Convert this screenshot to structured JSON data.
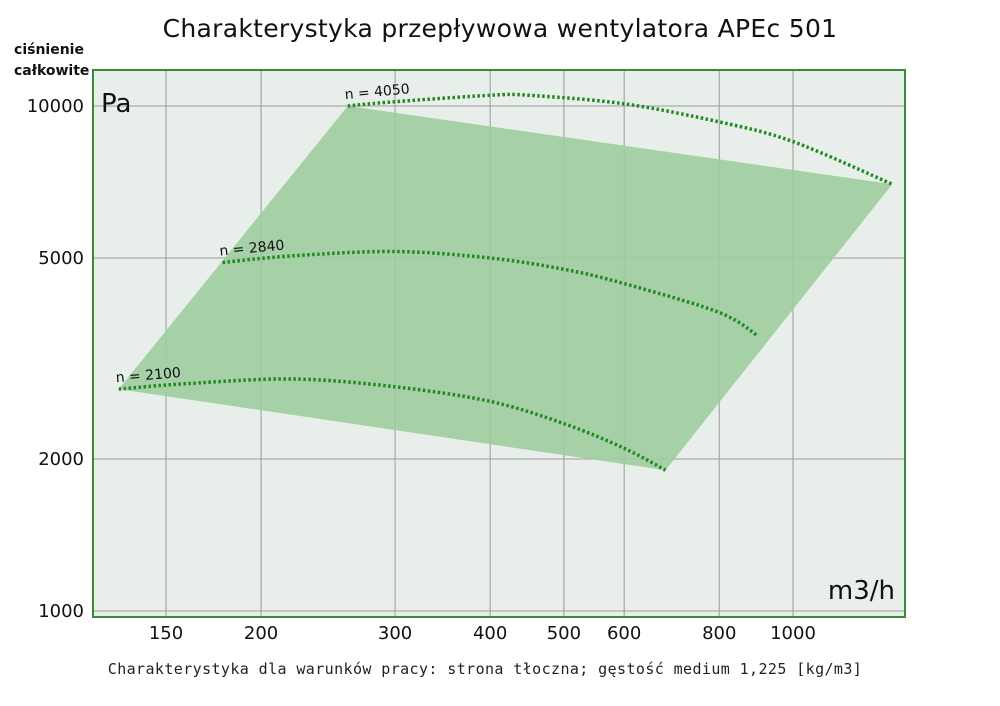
{
  "chart_data": {
    "type": "line",
    "title": "Charakterystyka przepływowa wentylatora APEc 501",
    "ylabel": "ciśnienie całkowite",
    "y_unit": "Pa",
    "x_unit": "m3/h",
    "caption": "Charakterystyka dla warunków pracy: strona tłoczna; gęstość medium 1,225 [kg/m3]",
    "x_scale": "log",
    "y_scale": "log",
    "xlim": [
      110,
      1400
    ],
    "ylim": [
      1000,
      10000
    ],
    "x_ticks": [
      150,
      200,
      300,
      400,
      500,
      600,
      800,
      1000
    ],
    "y_ticks": [
      1000,
      2000,
      5000,
      10000
    ],
    "grid": true,
    "colors": {
      "area": "#9fcc9f",
      "curve": "#1f8a1f",
      "plot_bg": "#e8eeea",
      "frame": "#3a8a3a"
    },
    "series": [
      {
        "name": "n = 4050",
        "points": [
          [
            260,
            10000
          ],
          [
            300,
            10200
          ],
          [
            400,
            10500
          ],
          [
            450,
            10500
          ],
          [
            600,
            10100
          ],
          [
            800,
            9300
          ],
          [
            1000,
            8500
          ],
          [
            1350,
            7000
          ]
        ]
      },
      {
        "name": "n = 2840",
        "points": [
          [
            178,
            4900
          ],
          [
            220,
            5050
          ],
          [
            300,
            5150
          ],
          [
            400,
            5000
          ],
          [
            500,
            4750
          ],
          [
            600,
            4450
          ],
          [
            800,
            3900
          ],
          [
            900,
            3500
          ]
        ]
      },
      {
        "name": "n = 2100",
        "points": [
          [
            130,
            2750
          ],
          [
            160,
            2820
          ],
          [
            220,
            2880
          ],
          [
            300,
            2780
          ],
          [
            400,
            2600
          ],
          [
            500,
            2350
          ],
          [
            600,
            2100
          ],
          [
            680,
            1900
          ]
        ]
      }
    ],
    "operating_area": [
      [
        130,
        2750
      ],
      [
        260,
        10000
      ],
      [
        1350,
        7000
      ],
      [
        680,
        1900
      ]
    ]
  }
}
